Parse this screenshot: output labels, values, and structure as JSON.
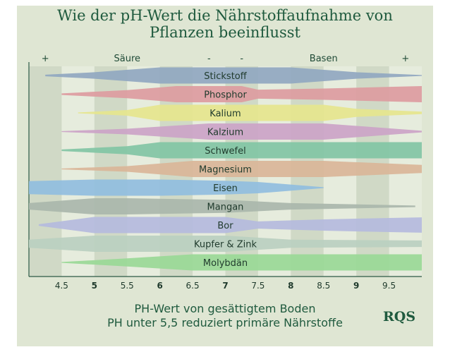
{
  "title_line1": "Wie der pH-Wert die Nährstoffaufnahme von",
  "title_line2": "Pflanzen beeinflusst",
  "caption_line1": "PH-Wert von gesättigtem Boden",
  "caption_line2": "PH unter 5,5 reduziert primäre Nährstoffe",
  "logo_text": "RQS",
  "chart_data": {
    "type": "area",
    "title": "Wie der pH-Wert die Nährstoffaufnahme von Pflanzen beeinflusst",
    "xlabel": "PH-Wert von gesättigtem Boden",
    "x_ticks": [
      "4.5",
      "5",
      "5.5",
      "6",
      "6.5",
      "7",
      "7.5",
      "8",
      "8.5",
      "9",
      "9.5"
    ],
    "x_ticks_bold": [
      "5",
      "6",
      "7",
      "8",
      "9"
    ],
    "xlim": [
      4.0,
      10.0
    ],
    "top_annotations": [
      {
        "text": "+",
        "x": 4.25
      },
      {
        "text": "Säure",
        "x": 5.5
      },
      {
        "text": "-",
        "x": 6.75
      },
      {
        "text": "-",
        "x": 7.25
      },
      {
        "text": "Basen",
        "x": 8.5
      },
      {
        "text": "+",
        "x": 9.75
      }
    ],
    "grid_bands": [
      [
        4.0,
        4.5
      ],
      [
        5.0,
        5.5
      ],
      [
        6.0,
        6.5
      ],
      [
        7.0,
        7.5
      ],
      [
        8.0,
        8.5
      ],
      [
        9.0,
        9.5
      ]
    ],
    "series": [
      {
        "name": "Stickstoff",
        "color": "#8fa6c0",
        "points": [
          [
            4.25,
            0.1
          ],
          [
            5.0,
            0.4
          ],
          [
            6.0,
            1.0
          ],
          [
            8.0,
            1.0
          ],
          [
            9.0,
            0.4
          ],
          [
            10.0,
            0.05
          ]
        ]
      },
      {
        "name": "Phosphor",
        "color": "#dd9a9f",
        "points": [
          [
            4.5,
            0.1
          ],
          [
            5.5,
            0.5
          ],
          [
            6.25,
            1.0
          ],
          [
            7.25,
            1.0
          ],
          [
            7.5,
            0.55
          ],
          [
            8.5,
            0.7
          ],
          [
            10.0,
            1.0
          ]
        ]
      },
      {
        "name": "Kalium",
        "color": "#e6e58c",
        "points": [
          [
            4.75,
            0.05
          ],
          [
            5.5,
            0.35
          ],
          [
            6.0,
            1.0
          ],
          [
            8.5,
            1.0
          ],
          [
            9.0,
            0.5
          ],
          [
            10.0,
            0.15
          ]
        ]
      },
      {
        "name": "Kalzium",
        "color": "#cba2c6",
        "points": [
          [
            4.5,
            0.05
          ],
          [
            5.5,
            0.35
          ],
          [
            6.75,
            1.0
          ],
          [
            8.5,
            1.0
          ],
          [
            10.0,
            0.1
          ]
        ]
      },
      {
        "name": "Schwefel",
        "color": "#7fc4a3",
        "points": [
          [
            4.5,
            0.1
          ],
          [
            5.5,
            0.5
          ],
          [
            6.0,
            1.0
          ],
          [
            10.0,
            1.0
          ]
        ]
      },
      {
        "name": "Magnesium",
        "color": "#d9b597",
        "points": [
          [
            4.5,
            0.05
          ],
          [
            5.5,
            0.35
          ],
          [
            6.5,
            1.0
          ],
          [
            8.5,
            1.0
          ],
          [
            10.0,
            0.5
          ]
        ]
      },
      {
        "name": "Eisen",
        "color": "#8fbddf",
        "points": [
          [
            4.0,
            0.8
          ],
          [
            5.0,
            1.0
          ],
          [
            6.0,
            1.0
          ],
          [
            7.0,
            0.85
          ],
          [
            7.5,
            0.7
          ],
          [
            8.5,
            0.05
          ]
        ]
      },
      {
        "name": "Mangan",
        "color": "#a8b6ab",
        "points": [
          [
            4.0,
            0.4
          ],
          [
            5.0,
            1.0
          ],
          [
            5.5,
            1.0
          ],
          [
            7.0,
            0.8
          ],
          [
            8.0,
            0.4
          ],
          [
            9.9,
            0.1
          ]
        ]
      },
      {
        "name": "Bor",
        "color": "#b4b9de",
        "points": [
          [
            4.15,
            0.1
          ],
          [
            5.0,
            1.0
          ],
          [
            7.0,
            1.0
          ],
          [
            7.5,
            0.45
          ],
          [
            8.5,
            0.7
          ],
          [
            10.0,
            0.95
          ]
        ]
      },
      {
        "name": "Kupfer & Zink",
        "color": "#b9cfc0",
        "points": [
          [
            4.0,
            0.5
          ],
          [
            5.0,
            1.0
          ],
          [
            7.0,
            1.0
          ],
          [
            8.0,
            0.5
          ],
          [
            10.0,
            0.4
          ]
        ]
      },
      {
        "name": "Molybdän",
        "color": "#98d895",
        "points": [
          [
            4.5,
            0.05
          ],
          [
            5.5,
            0.5
          ],
          [
            6.5,
            1.0
          ],
          [
            10.0,
            1.0
          ]
        ]
      }
    ],
    "grid": true
  }
}
